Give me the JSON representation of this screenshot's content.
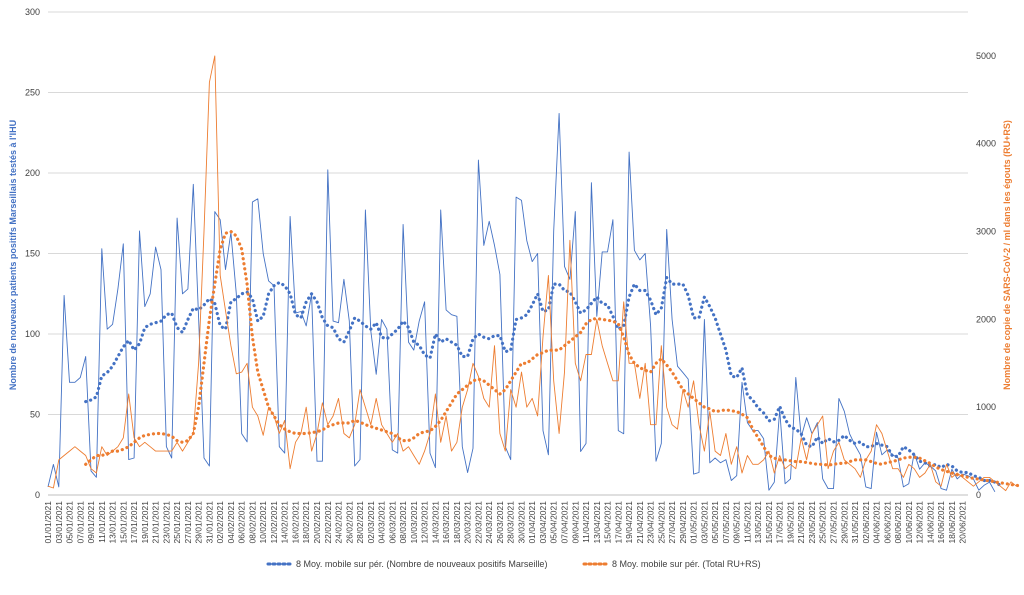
{
  "chart_data": {
    "type": "line",
    "x_start": "01/01/2021",
    "x_end": "21/06/2021",
    "x_tick_labels": [
      "01/01/2021",
      "03/01/2021",
      "05/01/2021",
      "07/01/2021",
      "09/01/2021",
      "11/01/2021",
      "13/01/2021",
      "15/01/2021",
      "17/01/2021",
      "19/01/2021",
      "21/01/2021",
      "23/01/2021",
      "25/01/2021",
      "27/01/2021",
      "29/01/2021",
      "31/01/2021",
      "02/02/2021",
      "04/02/2021",
      "06/02/2021",
      "08/02/2021",
      "10/02/2021",
      "12/02/2021",
      "14/02/2021",
      "16/02/2021",
      "18/02/2021",
      "20/02/2021",
      "22/02/2021",
      "24/02/2021",
      "26/02/2021",
      "28/02/2021",
      "02/03/2021",
      "04/03/2021",
      "06/03/2021",
      "08/03/2021",
      "10/03/2021",
      "12/03/2021",
      "14/03/2021",
      "16/03/2021",
      "18/03/2021",
      "20/03/2021",
      "22/03/2021",
      "24/03/2021",
      "26/03/2021",
      "28/03/2021",
      "30/03/2021",
      "01/04/2021",
      "03/04/2021",
      "05/04/2021",
      "07/04/2021",
      "09/04/2021",
      "11/04/2021",
      "13/04/2021",
      "15/04/2021",
      "17/04/2021",
      "19/04/2021",
      "21/04/2021",
      "23/04/2021",
      "25/04/2021",
      "27/04/2021",
      "29/04/2021",
      "01/05/2021",
      "03/05/2021",
      "05/05/2021",
      "07/05/2021",
      "09/05/2021",
      "11/05/2021",
      "13/05/2021",
      "15/05/2021",
      "17/05/2021",
      "19/05/2021",
      "21/05/2021",
      "23/05/2021",
      "25/05/2021",
      "27/05/2021",
      "29/05/2021",
      "31/05/2021",
      "02/06/2021",
      "04/06/2021",
      "06/06/2021",
      "08/06/2021",
      "10/06/2021",
      "12/06/2021",
      "14/06/2021",
      "16/06/2021",
      "18/06/2021",
      "20/06/2021"
    ],
    "y_left": {
      "label": "Nombre de nouveaux patients positifs Marseillais testés à l'IHU",
      "ylim": [
        0,
        300
      ],
      "ticks": [
        0,
        50,
        100,
        150,
        200,
        250,
        300
      ]
    },
    "y_right": {
      "label": "Nombre de copie de SARS-CoV-2 / ml dans les égouts (RU+RS)",
      "ylim": [
        0,
        5500
      ],
      "ticks": [
        0,
        1000,
        2000,
        3000,
        4000,
        5000
      ]
    },
    "grid": "horizontal",
    "legend_position": "bottom",
    "legend": [
      {
        "label": "8 Moy. mobile sur pér. (Nombre de nouveaux positifs Marseille)",
        "color": "#4472C4",
        "style": "dotted"
      },
      {
        "label": "8 Moy. mobile sur pér. (Total RU+RS)",
        "color": "#ED7D31",
        "style": "dotted"
      }
    ],
    "series": [
      {
        "axis": "left",
        "color": "#4472C4",
        "style": "solid",
        "values": [
          5,
          19,
          5,
          124,
          70,
          70,
          73,
          86,
          15,
          11,
          153,
          103,
          106,
          128,
          156,
          22,
          23,
          164,
          117,
          125,
          154,
          140,
          30,
          23,
          172,
          125,
          128,
          193,
          110,
          23,
          18,
          176,
          171,
          140,
          163,
          125,
          38,
          33,
          182,
          184,
          150,
          133,
          130,
          30,
          26,
          173,
          113,
          114,
          105,
          125,
          21,
          21,
          202,
          108,
          107,
          134,
          108,
          18,
          22,
          177,
          102,
          75,
          109,
          103,
          28,
          26,
          168,
          95,
          90,
          108,
          120,
          26,
          17,
          177,
          115,
          112,
          111,
          30,
          14,
          29,
          208,
          155,
          170,
          155,
          137,
          30,
          22,
          185,
          183,
          158,
          145,
          150,
          40,
          25,
          164,
          237,
          142,
          134,
          176,
          27,
          32,
          194,
          111,
          151,
          151,
          171,
          40,
          38,
          213,
          152,
          146,
          150,
          105,
          21,
          32,
          165,
          109,
          80,
          76,
          72,
          13,
          14,
          109,
          20,
          23,
          20,
          22,
          9,
          12,
          70,
          45,
          40,
          40,
          35,
          3,
          8,
          53,
          7,
          10,
          73,
          36,
          48,
          38,
          45,
          10,
          4,
          4,
          60,
          52,
          38,
          31,
          25,
          5,
          4,
          39,
          25,
          28,
          25,
          23,
          5,
          7,
          26,
          16,
          20,
          18,
          15,
          4,
          3,
          16,
          10,
          13,
          12,
          10,
          3,
          6,
          8,
          2
        ]
      },
      {
        "axis": "left",
        "color": "#4472C4",
        "style": "dotted",
        "start": 7,
        "values": [
          58,
          59,
          61,
          74,
          76,
          80,
          86,
          92,
          96,
          90,
          94,
          104,
          106,
          107,
          108,
          112,
          113,
          104,
          101,
          109,
          116,
          115,
          118,
          122,
          119,
          105,
          103,
          120,
          122,
          125,
          126,
          122,
          108,
          111,
          125,
          130,
          132,
          130,
          125,
          112,
          110,
          120,
          125,
          120,
          110,
          105,
          104,
          97,
          95,
          102,
          110,
          108,
          105,
          103,
          107,
          98,
          97,
          100,
          103,
          108,
          104,
          95,
          93,
          87,
          85,
          100,
          95,
          97,
          95,
          93,
          86,
          86,
          97,
          100,
          98,
          97,
          99,
          99,
          89,
          90,
          109,
          110,
          112,
          118,
          125,
          114,
          115,
          131,
          131,
          127,
          126,
          120,
          113,
          115,
          119,
          123,
          119,
          118,
          111,
          103,
          105,
          123,
          131,
          127,
          127,
          121,
          112,
          116,
          135,
          131,
          131,
          131,
          124,
          110,
          110,
          123,
          117,
          110,
          100,
          90,
          74,
          73,
          79,
          62,
          59,
          54,
          51,
          46,
          47,
          55,
          47,
          42,
          41,
          38,
          31,
          30,
          36,
          32,
          35,
          33,
          34,
          37,
          34,
          32,
          33,
          30,
          30,
          32,
          31,
          30,
          24,
          24,
          30,
          28,
          25,
          21,
          20,
          18,
          19,
          17,
          19,
          18,
          15,
          14,
          14,
          12,
          11,
          9,
          9,
          8,
          6
        ]
      },
      {
        "axis": "right",
        "color": "#ED7D31",
        "style": "solid",
        "values": [
          100,
          80,
          400,
          450,
          500,
          550,
          500,
          450,
          300,
          250,
          550,
          450,
          500,
          550,
          650,
          1150,
          650,
          550,
          600,
          550,
          500,
          500,
          500,
          500,
          600,
          500,
          600,
          700,
          1500,
          3000,
          4700,
          5000,
          2500,
          2100,
          1700,
          1380,
          1400,
          1500,
          1000,
          900,
          680,
          1000,
          900,
          700,
          850,
          300,
          600,
          700,
          1000,
          500,
          700,
          1050,
          800,
          900,
          1100,
          700,
          650,
          800,
          1200,
          1000,
          800,
          1100,
          800,
          700,
          600,
          700,
          500,
          550,
          450,
          350,
          500,
          700,
          1150,
          600,
          900,
          500,
          600,
          1000,
          1200,
          1500,
          1350,
          1100,
          1000,
          1700,
          700,
          500,
          1200,
          1000,
          1400,
          1000,
          1100,
          900,
          1800,
          2500,
          1300,
          700,
          1400,
          2900,
          1500,
          1300,
          1600,
          1600,
          2000,
          1700,
          1500,
          1300,
          1300,
          2200,
          1500,
          1500,
          1100,
          1500,
          800,
          800,
          1700,
          1000,
          800,
          750,
          1200,
          1000,
          1300,
          800,
          500,
          950,
          500,
          450,
          700,
          350,
          550,
          250,
          450,
          350,
          350,
          400,
          500,
          250,
          450,
          300,
          350,
          300,
          650,
          400,
          700,
          800,
          900,
          300,
          500,
          600,
          400,
          350,
          300,
          200,
          400,
          500,
          800,
          700,
          500,
          300,
          300,
          200,
          350,
          300,
          200,
          250,
          350,
          150,
          100,
          350,
          200,
          250,
          200,
          150,
          100,
          150,
          200,
          200,
          150,
          100,
          50,
          150,
          100
        ]
      },
      {
        "axis": "right",
        "color": "#ED7D31",
        "style": "dotted",
        "start": 7,
        "values": [
          350,
          400,
          450,
          450,
          470,
          500,
          500,
          520,
          550,
          600,
          650,
          680,
          690,
          700,
          700,
          690,
          670,
          620,
          600,
          620,
          700,
          1000,
          1500,
          2000,
          2400,
          2800,
          2980,
          3000,
          2950,
          2800,
          2400,
          1800,
          1400,
          1200,
          1000,
          900,
          800,
          750,
          720,
          700,
          700,
          700,
          710,
          720,
          740,
          780,
          800,
          820,
          820,
          820,
          850,
          830,
          800,
          780,
          760,
          740,
          720,
          700,
          650,
          620,
          620,
          650,
          700,
          720,
          730,
          780,
          850,
          950,
          1050,
          1150,
          1200,
          1250,
          1300,
          1320,
          1300,
          1250,
          1200,
          1150,
          1200,
          1300,
          1400,
          1500,
          1500,
          1550,
          1600,
          1620,
          1650,
          1650,
          1650,
          1700,
          1750,
          1800,
          1850,
          1950,
          2000,
          2010,
          2000,
          1990,
          1980,
          1950,
          1800,
          1600,
          1500,
          1450,
          1420,
          1400,
          1500,
          1550,
          1480,
          1400,
          1300,
          1200,
          1150,
          1100,
          1050,
          1000,
          980,
          950,
          960,
          970,
          960,
          950,
          920,
          880,
          750,
          650,
          550,
          450,
          420,
          400,
          400,
          390,
          380,
          380,
          370,
          360,
          350,
          350,
          340,
          350,
          360,
          360,
          380,
          400,
          400,
          400,
          380,
          360,
          350,
          370,
          380,
          400,
          420,
          430,
          430,
          420,
          390,
          360,
          320,
          290,
          270,
          250,
          230,
          220,
          200,
          190,
          180,
          170,
          160,
          150,
          140,
          130,
          120,
          110,
          100
        ]
      }
    ]
  }
}
